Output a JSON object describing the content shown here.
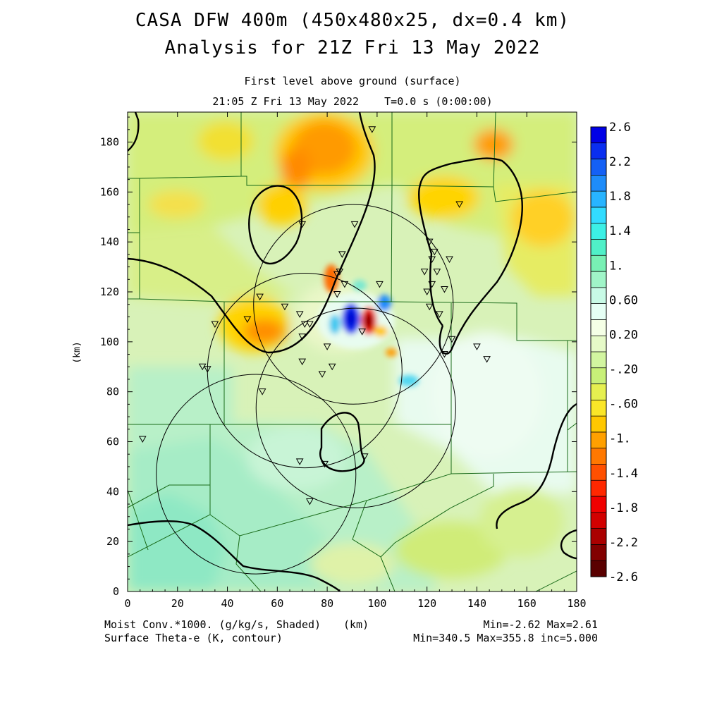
{
  "title": {
    "line1": "CASA DFW 400m (450x480x25, dx=0.4 km)",
    "line2": "Analysis for 21Z Fri 13 May 2022"
  },
  "subtitle": {
    "level": "First level above ground (surface)",
    "time": "21:05 Z Fri 13 May 2022    T=0.0 s (0:00:00)"
  },
  "axes": {
    "x_unit_label": "(km)",
    "y_unit_label": "(km)",
    "x_ticks": [
      "0",
      "20",
      "40",
      "60",
      "80",
      "100",
      "120",
      "140",
      "160",
      "180"
    ],
    "y_ticks": [
      "0",
      "20",
      "40",
      "60",
      "80",
      "100",
      "120",
      "140",
      "160",
      "180"
    ],
    "x_range": [
      0,
      180
    ],
    "y_range": [
      0,
      192
    ]
  },
  "colorbar": {
    "labels": [
      "2.6",
      "2.2",
      "1.8",
      "1.4",
      "1.",
      "0.60",
      "0.20",
      "-.20",
      "-.60",
      "-1.",
      "-1.4",
      "-1.8",
      "-2.2",
      "-2.6"
    ],
    "colors": [
      "#0000e6",
      "#0a2ef0",
      "#1460f5",
      "#1e8cfa",
      "#28b4ff",
      "#32dcff",
      "#3cf0e6",
      "#50f0c8",
      "#78f0b4",
      "#a0f5c8",
      "#c8fae6",
      "#e6fff5",
      "#f5ffe6",
      "#e6fac8",
      "#d2f5a0",
      "#c8f078",
      "#e6f050",
      "#fae628",
      "#ffc800",
      "#ffa000",
      "#ff7800",
      "#ff5000",
      "#ff2800",
      "#f00000",
      "#d20000",
      "#aa0000",
      "#820000",
      "#5a0000"
    ]
  },
  "footer": {
    "left1": "Moist Conv.*1000. (g/kg/s, Shaded)",
    "left_unit": "(km)",
    "left2": "Surface Theta-e (K, contour)",
    "right1": "Min=-2.62 Max=2.61",
    "right2": "Min=340.5 Max=355.8 inc=5.000"
  },
  "stations": [
    [
      98,
      185
    ],
    [
      133,
      155
    ],
    [
      70,
      147
    ],
    [
      91,
      147
    ],
    [
      86,
      135
    ],
    [
      121,
      140
    ],
    [
      123,
      136
    ],
    [
      122,
      133
    ],
    [
      119,
      128
    ],
    [
      129,
      133
    ],
    [
      85,
      128
    ],
    [
      84,
      127
    ],
    [
      87,
      123
    ],
    [
      101,
      123
    ],
    [
      122,
      123
    ],
    [
      124,
      128
    ],
    [
      120,
      120
    ],
    [
      127,
      121
    ],
    [
      53,
      118
    ],
    [
      63,
      114
    ],
    [
      69,
      111
    ],
    [
      121,
      114
    ],
    [
      125,
      111
    ],
    [
      35,
      107
    ],
    [
      48,
      109
    ],
    [
      71,
      107
    ],
    [
      73,
      107
    ],
    [
      84,
      119
    ],
    [
      94,
      104
    ],
    [
      70,
      102
    ],
    [
      80,
      98
    ],
    [
      130,
      101
    ],
    [
      140,
      98
    ],
    [
      127,
      95
    ],
    [
      144,
      93
    ],
    [
      30,
      90
    ],
    [
      32,
      89
    ],
    [
      70,
      92
    ],
    [
      78,
      87
    ],
    [
      82,
      90
    ],
    [
      54,
      80
    ],
    [
      6,
      61
    ],
    [
      69,
      52
    ],
    [
      79,
      51
    ],
    [
      95,
      54
    ],
    [
      73,
      36
    ]
  ],
  "radar_circles": [
    {
      "cx": 71,
      "cy": 88.5,
      "r": 39
    },
    {
      "cx": 90.5,
      "cy": 115,
      "r": 40
    },
    {
      "cx": 91.5,
      "cy": 73.5,
      "r": 40
    },
    {
      "cx": 51.5,
      "cy": 47,
      "r": 40
    }
  ]
}
